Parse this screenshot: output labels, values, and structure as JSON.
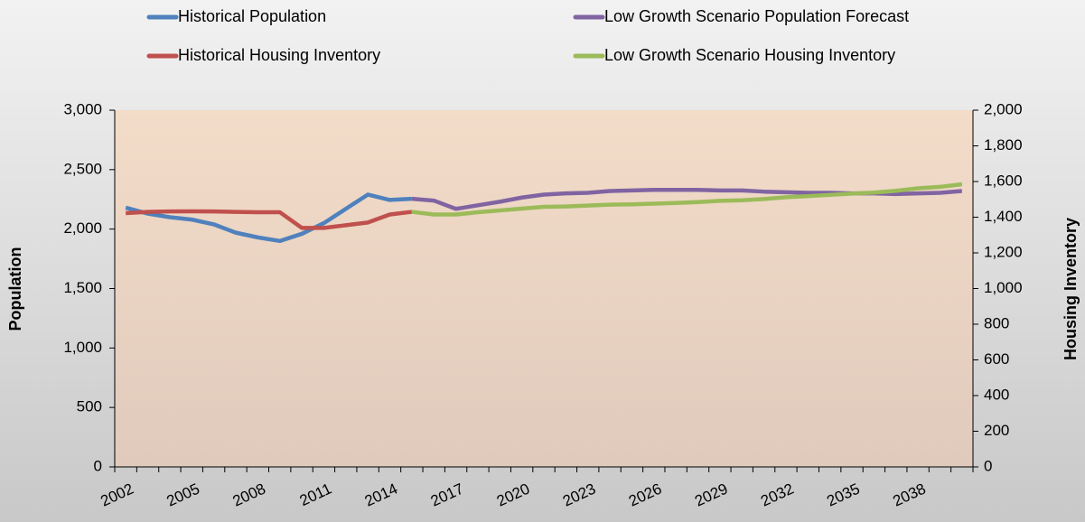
{
  "chart_data": {
    "type": "line",
    "y_label": "Population",
    "y2_label": "Housing Inventory",
    "categories": [
      "2002",
      null,
      null,
      "2005",
      null,
      null,
      "2008",
      null,
      null,
      "2011",
      null,
      null,
      "2014",
      null,
      null,
      "2017",
      null,
      null,
      "2020",
      null,
      null,
      "2023",
      null,
      null,
      "2026",
      null,
      null,
      "2029",
      null,
      null,
      "2032",
      null,
      null,
      "2035",
      null,
      null,
      "2038",
      null,
      null
    ],
    "ylim": [
      0,
      3000
    ],
    "yticks": [
      0,
      500,
      {
        "value": 1000,
        "label": "1,000"
      },
      {
        "value": 1500,
        "label": "1,500"
      },
      {
        "value": 2000,
        "label": "2,000"
      },
      {
        "value": 2500,
        "label": "2,500"
      },
      {
        "value": 3000,
        "label": "3,000"
      }
    ],
    "y2lim": [
      0,
      2000
    ],
    "y2ticks": [
      0,
      200,
      400,
      600,
      800,
      {
        "value": 1000,
        "label": "1,000"
      },
      {
        "value": 1200,
        "label": "1,200"
      },
      {
        "value": 1400,
        "label": "1,400"
      },
      {
        "value": 1600,
        "label": "1,600"
      },
      {
        "value": 1800,
        "label": "1,800"
      },
      {
        "value": 2000,
        "label": "2,000"
      }
    ],
    "legend": "top",
    "series": [
      {
        "name": "Historical Population",
        "color": "#4f81bd",
        "values": [
          2180,
          2130,
          2100,
          2080,
          2040,
          1970,
          1930,
          1900,
          1960,
          2050,
          2170,
          2290,
          2245,
          2255,
          null,
          null,
          null,
          null,
          null,
          null,
          null,
          null,
          null,
          null,
          null,
          null,
          null,
          null,
          null,
          null,
          null,
          null,
          null,
          null,
          null,
          null,
          null,
          null,
          null
        ]
      },
      {
        "name": "Low Growth Scenario Population Forecast",
        "color": "#8064a2",
        "values": [
          null,
          null,
          null,
          null,
          null,
          null,
          null,
          null,
          null,
          null,
          null,
          null,
          null,
          2255,
          2240,
          2170,
          2200,
          2230,
          2265,
          2290,
          2300,
          2305,
          2320,
          2325,
          2330,
          2330,
          2330,
          2325,
          2325,
          2315,
          2310,
          2305,
          2305,
          2300,
          2300,
          2295,
          2300,
          2305,
          2320
        ]
      },
      {
        "name": "Historical Housing Inventory",
        "color": "#c0504d",
        "axis": "y2",
        "values": [
          1423,
          1430,
          1432,
          1433,
          1432,
          1430,
          1428,
          1428,
          1340,
          1340,
          1355,
          1370,
          1415,
          1430,
          null,
          null,
          null,
          null,
          null,
          null,
          null,
          null,
          null,
          null,
          null,
          null,
          null,
          null,
          null,
          null,
          null,
          null,
          null,
          null,
          null,
          null,
          null,
          null,
          null
        ]
      },
      {
        "name": "Low Growth Scenario Housing Inventory",
        "color": "#9bbb59",
        "axis": "y2",
        "values": [
          null,
          null,
          null,
          null,
          null,
          null,
          null,
          null,
          null,
          null,
          null,
          null,
          null,
          1430,
          1415,
          1415,
          1428,
          1438,
          1448,
          1458,
          1460,
          1465,
          1470,
          1472,
          1476,
          1480,
          1485,
          1492,
          1495,
          1502,
          1512,
          1518,
          1525,
          1532,
          1538,
          1548,
          1562,
          1570,
          1585
        ]
      }
    ]
  }
}
